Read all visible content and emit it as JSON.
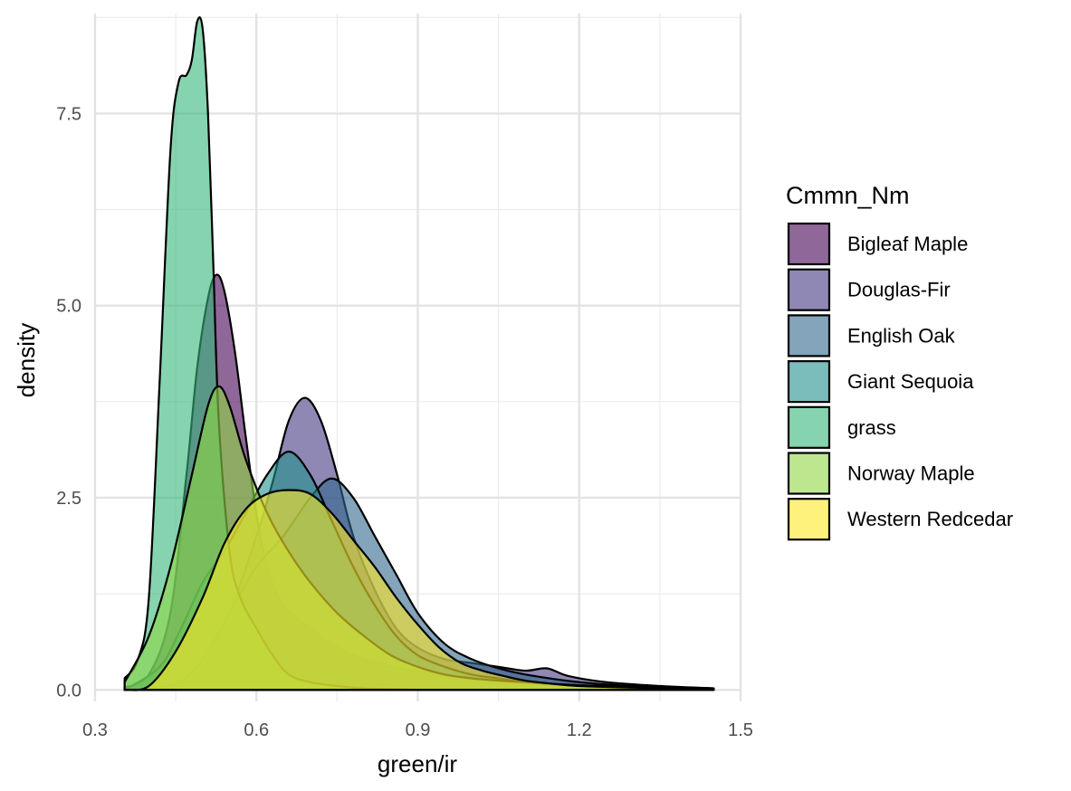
{
  "chart_data": {
    "type": "area",
    "xlabel": "green/ir",
    "ylabel": "density",
    "xlim": [
      0.3,
      1.5
    ],
    "ylim": [
      -0.15,
      8.8
    ],
    "x_ticks": [
      0.3,
      0.6,
      0.9,
      1.2,
      1.5
    ],
    "x_tick_labels": [
      "0.3",
      "0.6",
      "0.9",
      "1.2",
      "1.5"
    ],
    "y_ticks": [
      0.0,
      2.5,
      5.0,
      7.5
    ],
    "y_tick_labels": [
      "0.0",
      "2.5",
      "5.0",
      "7.5"
    ],
    "grid": true,
    "legend": {
      "title": "Cmmn_Nm",
      "placement": "right"
    },
    "fill_opacity": 0.6,
    "series": [
      {
        "name": "Bigleaf Maple",
        "color": "#440154",
        "points": [
          [
            0.355,
            0.03
          ],
          [
            0.4,
            0.2
          ],
          [
            0.44,
            1.0
          ],
          [
            0.47,
            2.8
          ],
          [
            0.49,
            4.2
          ],
          [
            0.51,
            5.1
          ],
          [
            0.525,
            5.4
          ],
          [
            0.54,
            5.2
          ],
          [
            0.56,
            4.4
          ],
          [
            0.58,
            3.3
          ],
          [
            0.6,
            2.3
          ],
          [
            0.62,
            1.6
          ],
          [
            0.65,
            1.1
          ],
          [
            0.7,
            0.8
          ],
          [
            0.75,
            0.55
          ],
          [
            0.8,
            0.4
          ],
          [
            0.85,
            0.3
          ],
          [
            0.9,
            0.25
          ],
          [
            0.95,
            0.2
          ],
          [
            1.0,
            0.16
          ],
          [
            1.05,
            0.12
          ],
          [
            1.1,
            0.1
          ],
          [
            1.15,
            0.08
          ],
          [
            1.2,
            0.06
          ],
          [
            1.3,
            0.04
          ],
          [
            1.4,
            0.02
          ],
          [
            1.45,
            0.01
          ]
        ]
      },
      {
        "name": "Douglas-Fir",
        "color": "#443983",
        "points": [
          [
            0.355,
            0.0
          ],
          [
            0.45,
            0.05
          ],
          [
            0.5,
            0.3
          ],
          [
            0.55,
            1.0
          ],
          [
            0.6,
            2.0
          ],
          [
            0.63,
            2.7
          ],
          [
            0.66,
            3.5
          ],
          [
            0.69,
            3.8
          ],
          [
            0.72,
            3.5
          ],
          [
            0.75,
            2.8
          ],
          [
            0.78,
            2.0
          ],
          [
            0.82,
            1.3
          ],
          [
            0.86,
            0.8
          ],
          [
            0.9,
            0.55
          ],
          [
            0.95,
            0.4
          ],
          [
            1.0,
            0.35
          ],
          [
            1.05,
            0.3
          ],
          [
            1.1,
            0.25
          ],
          [
            1.14,
            0.28
          ],
          [
            1.18,
            0.18
          ],
          [
            1.25,
            0.1
          ],
          [
            1.35,
            0.05
          ],
          [
            1.45,
            0.02
          ]
        ]
      },
      {
        "name": "English Oak",
        "color": "#31688e",
        "points": [
          [
            0.355,
            0.0
          ],
          [
            0.45,
            0.08
          ],
          [
            0.5,
            0.4
          ],
          [
            0.55,
            1.0
          ],
          [
            0.6,
            1.6
          ],
          [
            0.65,
            2.0
          ],
          [
            0.7,
            2.5
          ],
          [
            0.74,
            2.75
          ],
          [
            0.78,
            2.5
          ],
          [
            0.82,
            2.0
          ],
          [
            0.86,
            1.5
          ],
          [
            0.9,
            1.0
          ],
          [
            0.95,
            0.6
          ],
          [
            1.0,
            0.4
          ],
          [
            1.05,
            0.28
          ],
          [
            1.1,
            0.2
          ],
          [
            1.2,
            0.1
          ],
          [
            1.3,
            0.05
          ],
          [
            1.45,
            0.02
          ]
        ]
      },
      {
        "name": "Giant Sequoia",
        "color": "#21918c",
        "points": [
          [
            0.355,
            0.0
          ],
          [
            0.42,
            0.3
          ],
          [
            0.46,
            0.8
          ],
          [
            0.5,
            1.4
          ],
          [
            0.54,
            1.8
          ],
          [
            0.58,
            2.3
          ],
          [
            0.62,
            2.8
          ],
          [
            0.66,
            3.1
          ],
          [
            0.7,
            2.8
          ],
          [
            0.74,
            2.2
          ],
          [
            0.78,
            1.6
          ],
          [
            0.82,
            1.1
          ],
          [
            0.86,
            0.7
          ],
          [
            0.9,
            0.45
          ],
          [
            0.95,
            0.3
          ],
          [
            1.0,
            0.2
          ],
          [
            1.05,
            0.15
          ],
          [
            1.1,
            0.1
          ],
          [
            1.2,
            0.05
          ],
          [
            1.3,
            0.02
          ],
          [
            1.45,
            0.0
          ]
        ]
      },
      {
        "name": "grass",
        "color": "#35b779",
        "points": [
          [
            0.355,
            0.15
          ],
          [
            0.38,
            0.4
          ],
          [
            0.4,
            1.2
          ],
          [
            0.42,
            4.0
          ],
          [
            0.44,
            7.0
          ],
          [
            0.455,
            7.9
          ],
          [
            0.47,
            8.0
          ],
          [
            0.48,
            8.2
          ],
          [
            0.49,
            8.7
          ],
          [
            0.5,
            8.6
          ],
          [
            0.51,
            7.5
          ],
          [
            0.52,
            5.5
          ],
          [
            0.53,
            3.5
          ],
          [
            0.55,
            1.8
          ],
          [
            0.57,
            1.2
          ],
          [
            0.6,
            0.8
          ],
          [
            0.63,
            0.45
          ],
          [
            0.66,
            0.2
          ],
          [
            0.7,
            0.1
          ],
          [
            0.75,
            0.05
          ],
          [
            0.8,
            0.02
          ],
          [
            0.85,
            0.01
          ],
          [
            0.9,
            0.0
          ]
        ]
      },
      {
        "name": "Norway Maple",
        "color": "#90d743",
        "points": [
          [
            0.355,
            0.1
          ],
          [
            0.4,
            0.7
          ],
          [
            0.44,
            1.6
          ],
          [
            0.48,
            2.8
          ],
          [
            0.51,
            3.7
          ],
          [
            0.53,
            3.95
          ],
          [
            0.55,
            3.7
          ],
          [
            0.58,
            3.0
          ],
          [
            0.62,
            2.3
          ],
          [
            0.66,
            1.8
          ],
          [
            0.7,
            1.4
          ],
          [
            0.75,
            1.0
          ],
          [
            0.8,
            0.7
          ],
          [
            0.85,
            0.45
          ],
          [
            0.9,
            0.3
          ],
          [
            0.95,
            0.2
          ],
          [
            1.0,
            0.15
          ],
          [
            1.05,
            0.12
          ],
          [
            1.1,
            0.1
          ],
          [
            1.2,
            0.06
          ],
          [
            1.3,
            0.04
          ],
          [
            1.45,
            0.02
          ]
        ]
      },
      {
        "name": "Western Redcedar",
        "color": "#fde725",
        "points": [
          [
            0.355,
            0.0
          ],
          [
            0.4,
            0.05
          ],
          [
            0.45,
            0.5
          ],
          [
            0.5,
            1.2
          ],
          [
            0.54,
            1.9
          ],
          [
            0.58,
            2.35
          ],
          [
            0.62,
            2.55
          ],
          [
            0.66,
            2.6
          ],
          [
            0.7,
            2.55
          ],
          [
            0.74,
            2.3
          ],
          [
            0.78,
            1.95
          ],
          [
            0.82,
            1.6
          ],
          [
            0.86,
            1.2
          ],
          [
            0.9,
            0.85
          ],
          [
            0.94,
            0.55
          ],
          [
            0.98,
            0.35
          ],
          [
            1.02,
            0.25
          ],
          [
            1.06,
            0.18
          ],
          [
            1.1,
            0.12
          ],
          [
            1.15,
            0.08
          ],
          [
            1.2,
            0.05
          ],
          [
            1.3,
            0.03
          ],
          [
            1.45,
            0.01
          ]
        ]
      }
    ]
  }
}
